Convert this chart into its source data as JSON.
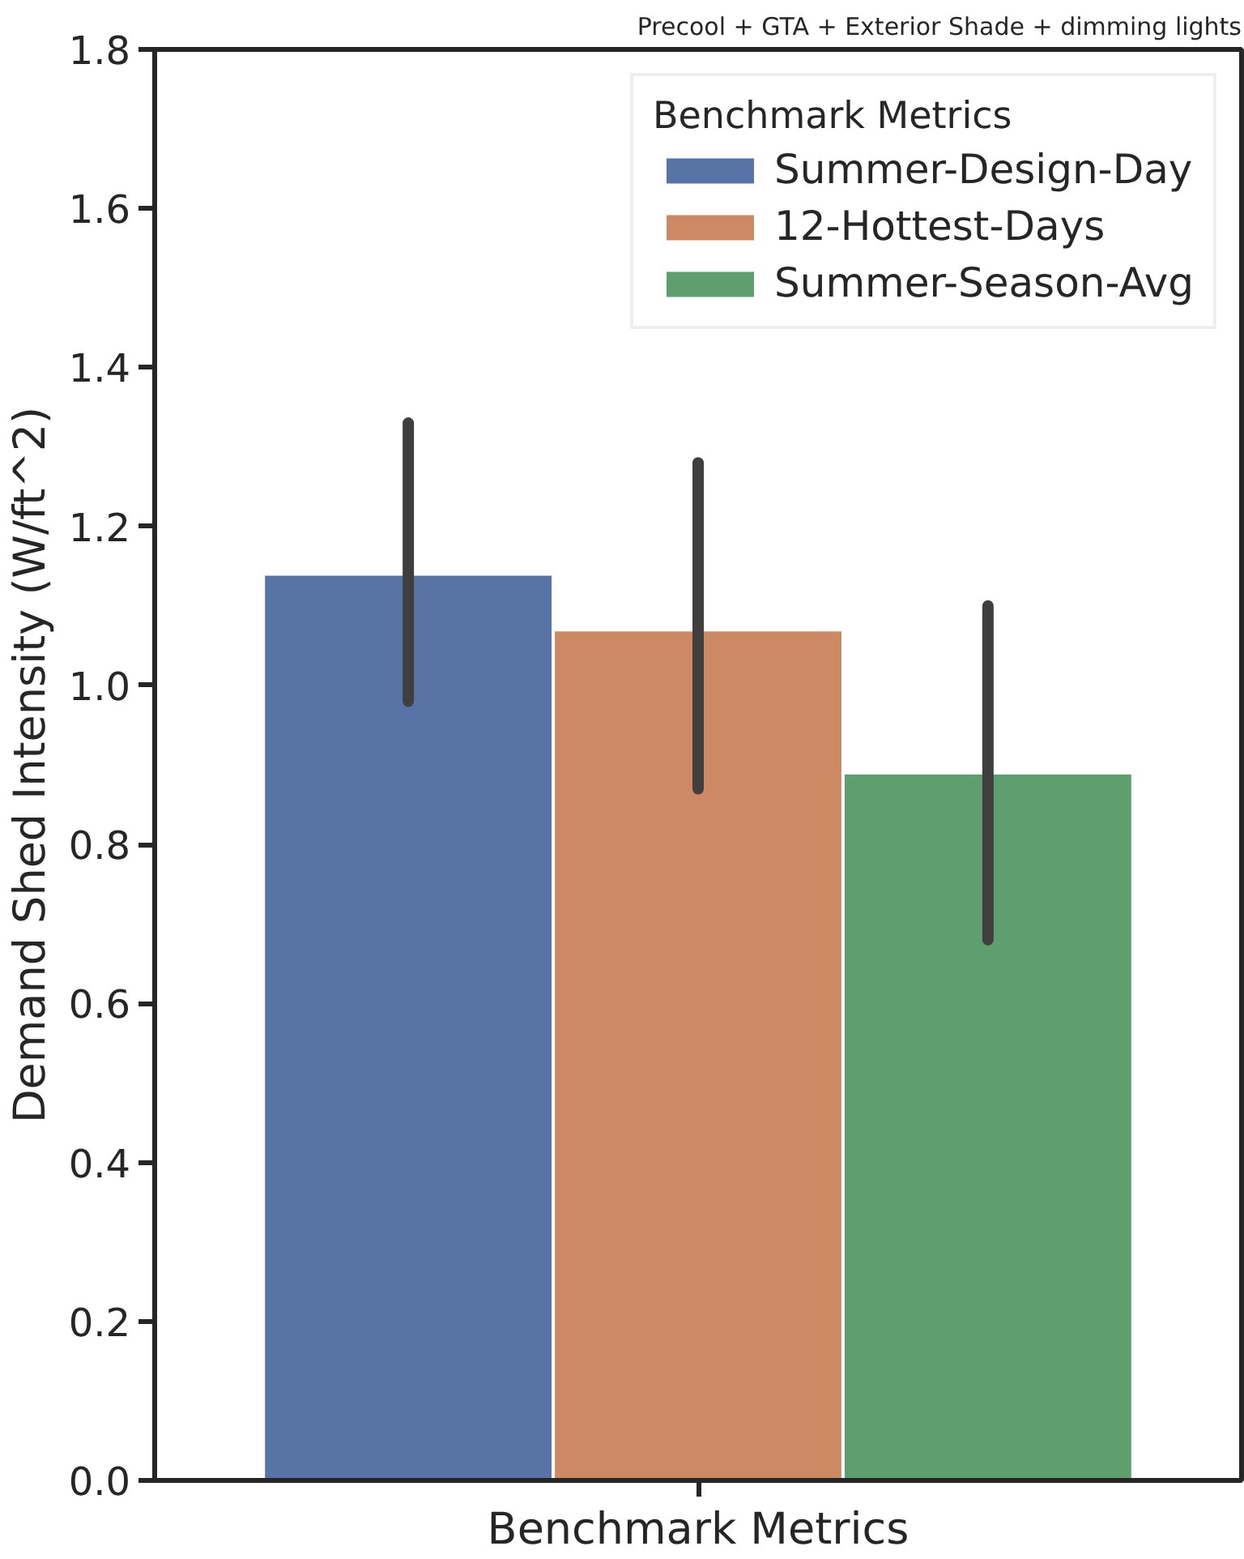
{
  "chart_data": {
    "type": "bar",
    "title": "Precool + GTA + Exterior Shade + dimming lights",
    "xlabel": "Benchmark Metrics",
    "ylabel": "Demand Shed Intensity (W/ft^2)",
    "legend_title": "Benchmark Metrics",
    "categories": [
      null
    ],
    "series": [
      {
        "name": "Summer-Design-Day",
        "color": "#5874a6",
        "values": [
          1.14
        ],
        "errors": [
          [
            0.98,
            1.33
          ]
        ]
      },
      {
        "name": "12-Hottest-Days",
        "color": "#cc8963",
        "values": [
          1.07
        ],
        "errors": [
          [
            0.87,
            1.28
          ]
        ]
      },
      {
        "name": "Summer-Season-Avg",
        "color": "#5f9e6e",
        "values": [
          0.89
        ],
        "errors": [
          [
            0.68,
            1.1
          ]
        ]
      }
    ],
    "ylim": [
      0,
      1.8
    ],
    "yticks": [
      {
        "value": 0,
        "label": "0.0"
      },
      {
        "value": 0.2,
        "label": "0.2"
      },
      {
        "value": 0.4,
        "label": "0.4"
      },
      {
        "value": 0.6,
        "label": "0.6"
      },
      {
        "value": 0.8,
        "label": "0.8"
      },
      {
        "value": 1,
        "label": "1.0"
      },
      {
        "value": 1.2,
        "label": "1.2"
      },
      {
        "value": 1.4,
        "label": "1.4"
      },
      {
        "value": 1.6,
        "label": "1.6"
      },
      {
        "value": 1.8,
        "label": "1.8"
      }
    ],
    "grid": false,
    "legend": "top right"
  }
}
